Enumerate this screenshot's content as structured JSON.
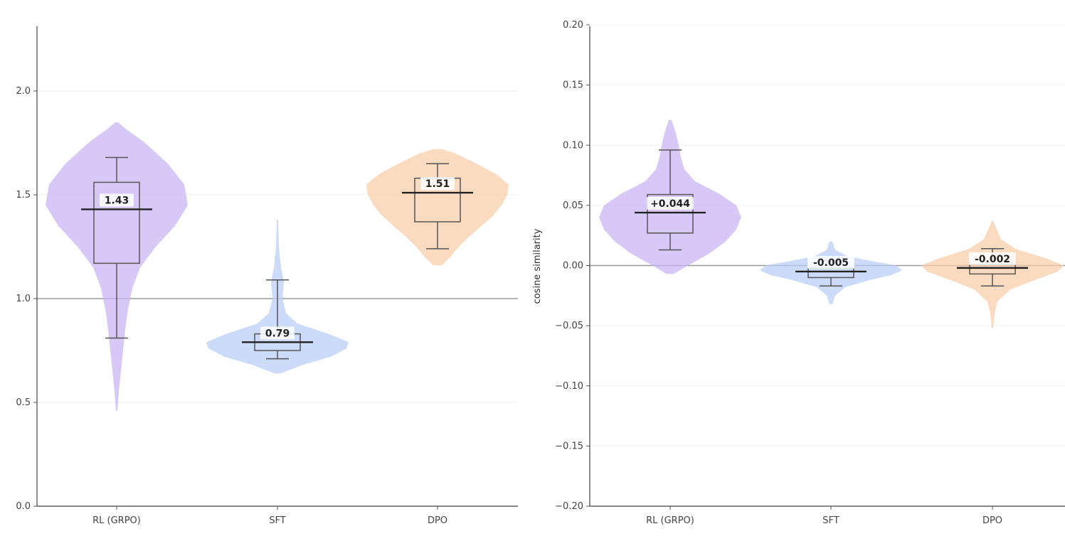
{
  "chart_data": [
    {
      "type": "violin",
      "title": "",
      "xlabel": "",
      "ylabel": "",
      "ylim": [
        0.0,
        2.3
      ],
      "yticks": [
        "0.0",
        "0.5",
        "1.0",
        "1.5",
        "2.0"
      ],
      "grid": "horizontal",
      "reference_line": 1.0,
      "categories": [
        "RL (GRPO)",
        "SFT",
        "DPO"
      ],
      "series": [
        {
          "category": "RL (GRPO)",
          "color": "#c9b3f5",
          "median": 1.43,
          "label": "1.43",
          "q1": 1.17,
          "q3": 1.56,
          "whisker_low": 0.81,
          "whisker_high": 1.68,
          "min": 0.46,
          "max": 1.85,
          "density": [
            [
              0.46,
              0.01
            ],
            [
              0.55,
              0.03
            ],
            [
              0.65,
              0.06
            ],
            [
              0.75,
              0.09
            ],
            [
              0.85,
              0.12
            ],
            [
              0.95,
              0.16
            ],
            [
              1.05,
              0.22
            ],
            [
              1.15,
              0.33
            ],
            [
              1.25,
              0.55
            ],
            [
              1.35,
              0.82
            ],
            [
              1.45,
              1.0
            ],
            [
              1.55,
              0.95
            ],
            [
              1.65,
              0.72
            ],
            [
              1.75,
              0.4
            ],
            [
              1.82,
              0.12
            ],
            [
              1.85,
              0.02
            ]
          ]
        },
        {
          "category": "SFT",
          "color": "#b7cdf6",
          "median": 0.79,
          "label": "0.79",
          "q1": 0.75,
          "q3": 0.83,
          "whisker_low": 0.71,
          "whisker_high": 1.09,
          "min": 0.64,
          "max": 1.38,
          "density": [
            [
              0.64,
              0.05
            ],
            [
              0.68,
              0.35
            ],
            [
              0.72,
              0.75
            ],
            [
              0.76,
              0.97
            ],
            [
              0.79,
              1.0
            ],
            [
              0.83,
              0.72
            ],
            [
              0.88,
              0.28
            ],
            [
              0.93,
              0.12
            ],
            [
              1.0,
              0.07
            ],
            [
              1.08,
              0.09
            ],
            [
              1.15,
              0.05
            ],
            [
              1.25,
              0.02
            ],
            [
              1.38,
              0.01
            ]
          ]
        },
        {
          "category": "DPO",
          "color": "#f9cda8",
          "median": 1.51,
          "label": "1.51",
          "q1": 1.37,
          "q3": 1.58,
          "whisker_low": 1.24,
          "whisker_high": 1.65,
          "min": 1.16,
          "max": 1.72,
          "density": [
            [
              1.16,
              0.06
            ],
            [
              1.2,
              0.18
            ],
            [
              1.25,
              0.3
            ],
            [
              1.3,
              0.45
            ],
            [
              1.35,
              0.62
            ],
            [
              1.4,
              0.78
            ],
            [
              1.45,
              0.9
            ],
            [
              1.5,
              0.98
            ],
            [
              1.55,
              1.0
            ],
            [
              1.6,
              0.82
            ],
            [
              1.65,
              0.55
            ],
            [
              1.7,
              0.25
            ],
            [
              1.72,
              0.05
            ]
          ]
        }
      ]
    },
    {
      "type": "violin",
      "title": "",
      "xlabel": "",
      "ylabel": "cosine similarity",
      "ylim": [
        -0.2,
        0.2
      ],
      "yticks": [
        "−0.20",
        "−0.15",
        "−0.10",
        "−0.05",
        "0.00",
        "0.05",
        "0.10",
        "0.15",
        "0.20"
      ],
      "grid": "horizontal",
      "reference_line": 0.0,
      "categories": [
        "RL (GRPO)",
        "SFT",
        "DPO"
      ],
      "series": [
        {
          "category": "RL (GRPO)",
          "color": "#c9b3f5",
          "median": 0.044,
          "label": "+0.044",
          "q1": 0.027,
          "q3": 0.059,
          "whisker_low": 0.013,
          "whisker_high": 0.096,
          "min": -0.007,
          "max": 0.121,
          "density": [
            [
              -0.007,
              0.05
            ],
            [
              0.0,
              0.25
            ],
            [
              0.01,
              0.55
            ],
            [
              0.02,
              0.78
            ],
            [
              0.03,
              0.93
            ],
            [
              0.04,
              1.0
            ],
            [
              0.05,
              0.93
            ],
            [
              0.06,
              0.68
            ],
            [
              0.07,
              0.35
            ],
            [
              0.08,
              0.2
            ],
            [
              0.09,
              0.15
            ],
            [
              0.1,
              0.12
            ],
            [
              0.11,
              0.08
            ],
            [
              0.121,
              0.02
            ]
          ]
        },
        {
          "category": "SFT",
          "color": "#b7cdf6",
          "median": -0.005,
          "label": "-0.005",
          "q1": -0.01,
          "q3": -0.002,
          "whisker_low": -0.017,
          "whisker_high": 0.004,
          "min": -0.032,
          "max": 0.02,
          "density": [
            [
              -0.032,
              0.02
            ],
            [
              -0.025,
              0.06
            ],
            [
              -0.018,
              0.2
            ],
            [
              -0.012,
              0.55
            ],
            [
              -0.008,
              0.85
            ],
            [
              -0.004,
              1.0
            ],
            [
              0.0,
              0.92
            ],
            [
              0.004,
              0.55
            ],
            [
              0.008,
              0.22
            ],
            [
              0.013,
              0.06
            ],
            [
              0.02,
              0.02
            ]
          ]
        },
        {
          "category": "DPO",
          "color": "#f9cda8",
          "median": -0.002,
          "label": "-0.002",
          "q1": -0.007,
          "q3": 0.001,
          "whisker_low": -0.017,
          "whisker_high": 0.014,
          "min": -0.052,
          "max": 0.037,
          "density": [
            [
              -0.052,
              0.01
            ],
            [
              -0.04,
              0.03
            ],
            [
              -0.03,
              0.07
            ],
            [
              -0.02,
              0.25
            ],
            [
              -0.012,
              0.6
            ],
            [
              -0.005,
              0.92
            ],
            [
              0.0,
              1.0
            ],
            [
              0.006,
              0.75
            ],
            [
              0.014,
              0.32
            ],
            [
              0.022,
              0.12
            ],
            [
              0.03,
              0.06
            ],
            [
              0.037,
              0.01
            ]
          ]
        }
      ]
    }
  ]
}
